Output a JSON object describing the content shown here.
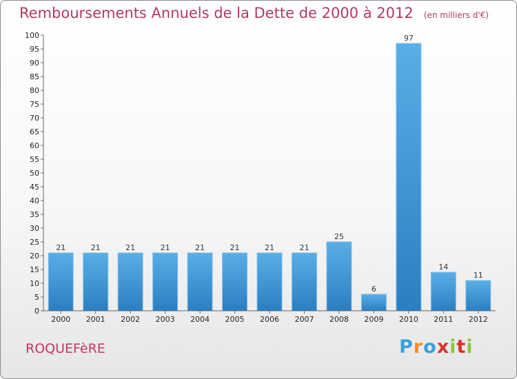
{
  "header": {
    "title": "Remboursements Annuels de la Dette de 2000 à 2012",
    "unit": "(en milliers d'€)"
  },
  "footer": {
    "commune": "ROQUEFèRE",
    "logo_letters": [
      "P",
      "r",
      "o",
      "x",
      "i",
      "t",
      "i"
    ],
    "logo_colors": [
      "#3aa0d8",
      "#f28c1e",
      "#3aa0d8",
      "#d8322a",
      "#8cc63f",
      "#d8322a",
      "#8cc63f"
    ]
  },
  "chart_data": {
    "type": "bar",
    "title": "Remboursements Annuels de la Dette de 2000 à 2012",
    "xlabel": "",
    "ylabel": "",
    "categories": [
      "2000",
      "2001",
      "2002",
      "2003",
      "2004",
      "2005",
      "2006",
      "2007",
      "2008",
      "2009",
      "2010",
      "2011",
      "2012"
    ],
    "values": [
      21,
      21,
      21,
      21,
      21,
      21,
      21,
      21,
      25,
      6,
      97,
      14,
      11
    ],
    "data_labels": [
      "21",
      "21",
      "21",
      "21",
      "21",
      "21",
      "21",
      "21",
      "25",
      "6",
      "97",
      "14",
      "11"
    ],
    "ylim": [
      0,
      100
    ],
    "yticks": [
      0,
      5,
      10,
      15,
      20,
      25,
      30,
      35,
      40,
      45,
      50,
      55,
      60,
      65,
      70,
      75,
      80,
      85,
      90,
      95,
      100
    ],
    "grid": false,
    "bar_color_top": "#5aaee6",
    "bar_color_bottom": "#2b7fc1"
  }
}
